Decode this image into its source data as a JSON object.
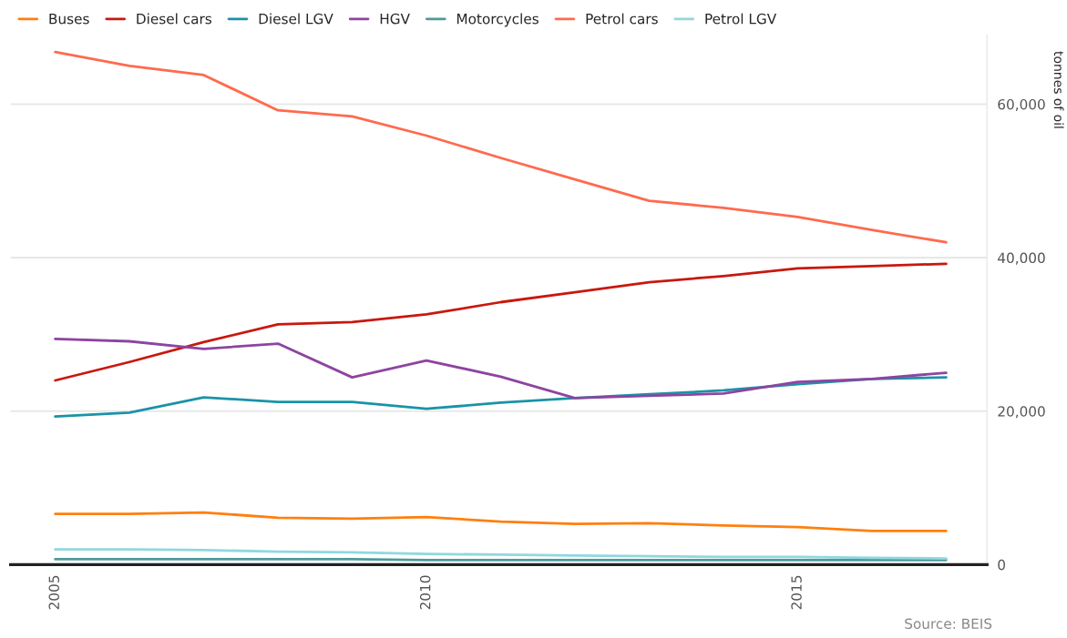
{
  "chart_data": {
    "type": "line",
    "ylabel": "tonnes of oil",
    "x": [
      2005,
      2006,
      2007,
      2008,
      2009,
      2010,
      2011,
      2012,
      2013,
      2014,
      2015,
      2016,
      2017
    ],
    "series": [
      {
        "name": "Buses",
        "color": "#ff7f0e",
        "values": [
          6600,
          6600,
          6800,
          6100,
          6000,
          6200,
          5600,
          5300,
          5400,
          5100,
          4900,
          4400,
          4400
        ]
      },
      {
        "name": "Diesel cars",
        "color": "#c8180e",
        "values": [
          24000,
          26400,
          29000,
          31300,
          31600,
          32600,
          34200,
          35500,
          36800,
          37600,
          38600,
          38900,
          39200
        ]
      },
      {
        "name": "Diesel LGV",
        "color": "#1a93a8",
        "values": [
          19300,
          19800,
          21800,
          21200,
          21200,
          20300,
          21100,
          21700,
          22200,
          22700,
          23500,
          24200,
          24400
        ]
      },
      {
        "name": "HGV",
        "color": "#8e44a0",
        "values": [
          29400,
          29100,
          28100,
          28800,
          24400,
          26600,
          24500,
          21700,
          22000,
          22300,
          23800,
          24200,
          25000
        ]
      },
      {
        "name": "Motorcycles",
        "color": "#4e9a9a",
        "values": [
          700,
          700,
          700,
          700,
          700,
          600,
          600,
          600,
          600,
          600,
          600,
          600,
          600
        ]
      },
      {
        "name": "Petrol cars",
        "color": "#ff6a4d",
        "values": [
          66800,
          65000,
          63800,
          59200,
          58400,
          55900,
          53000,
          50200,
          47400,
          46500,
          45300,
          43600,
          42000
        ]
      },
      {
        "name": "Petrol LGV",
        "color": "#8fd8df",
        "values": [
          2000,
          2000,
          1900,
          1700,
          1600,
          1400,
          1300,
          1200,
          1100,
          1000,
          1000,
          900,
          800
        ]
      }
    ],
    "xlim": [
      2004.4,
      2017.55
    ],
    "xticks": [
      2005,
      2010,
      2015
    ],
    "ylim": [
      0,
      69000
    ],
    "yticks": [
      0,
      {
        "value": 20000,
        "label": "20,000"
      },
      {
        "value": 40000,
        "label": "40,000"
      },
      {
        "value": 60000,
        "label": "60,000"
      }
    ],
    "grid": "y",
    "legend": "top left",
    "marker": "none",
    "line_style": "solid",
    "annotations": [
      "Source: BEIS"
    ]
  }
}
